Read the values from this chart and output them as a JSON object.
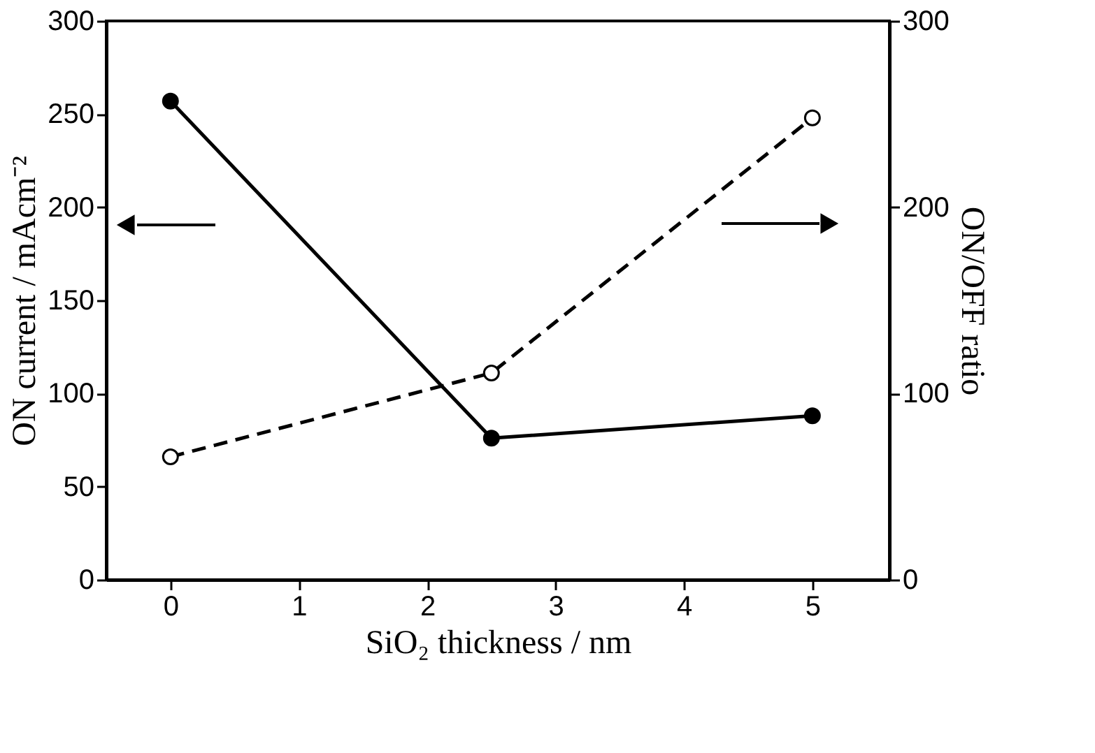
{
  "chart_data": {
    "type": "line",
    "xlabel": "SiO₂ thickness / nm",
    "ylabel": "ON current / mAcm⁻²",
    "y2label": "ON/OFF ratio",
    "x": [
      0,
      2.5,
      5
    ],
    "series": [
      {
        "color": "#000000",
        "values": [
          257,
          76,
          88
        ],
        "line_style": "solid"
      },
      {
        "color": "#000000",
        "values": [
          66,
          111,
          248
        ],
        "axis": "y2",
        "line_style": "dashed"
      }
    ],
    "xlim": [
      -0.5,
      5.6
    ],
    "xticks": [
      0,
      1,
      2,
      3,
      4,
      5
    ],
    "ylim": [
      0,
      300
    ],
    "yticks": [
      0,
      50,
      100,
      150,
      200,
      250,
      300
    ],
    "y2lim": [
      0,
      300
    ],
    "y2ticks": [
      0,
      100,
      200,
      300
    ],
    "marker": "circle",
    "grid": false
  }
}
